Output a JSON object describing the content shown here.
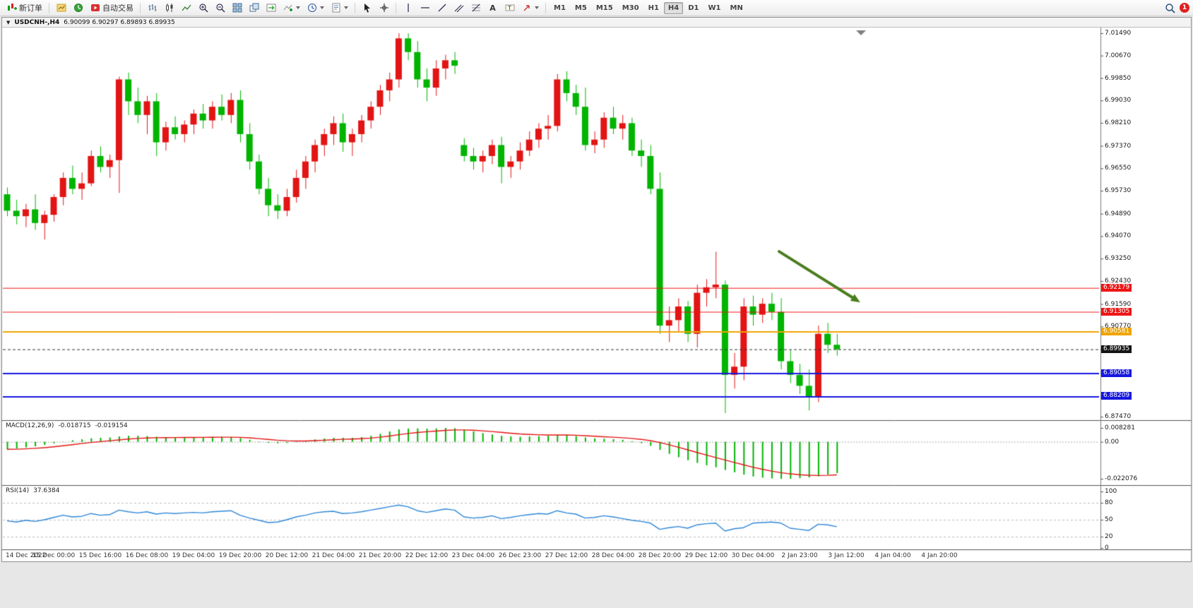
{
  "toolbar": {
    "new_order": "新订单",
    "autotrading": "自动交易",
    "timeframes": [
      "M1",
      "M5",
      "M15",
      "M30",
      "H1",
      "H4",
      "D1",
      "W1",
      "MN"
    ],
    "active_timeframe": "H4",
    "notification_count": "1"
  },
  "chart_window": {
    "symbol_period": "USDCNH-,H4",
    "quotes": "6.90099 6.90297 6.89893 6.89935"
  },
  "indicators": {
    "macd": {
      "label": "MACD(12,26,9)",
      "value_main": "-0.018715",
      "value_signal": "-0.019154",
      "scale": [
        "0.008281",
        "0.00",
        "-0.022076"
      ]
    },
    "rsi": {
      "label": "RSI(14)",
      "value": "37.6384",
      "scale": [
        "100",
        "80",
        "50",
        "20",
        "0"
      ]
    }
  },
  "price_axis": {
    "labels": [
      "7.01490",
      "7.00670",
      "6.99850",
      "6.99030",
      "6.98210",
      "6.97370",
      "6.96550",
      "6.95730",
      "6.94890",
      "6.94070",
      "6.93250",
      "6.92430",
      "6.91590",
      "6.90770",
      "6.87470"
    ],
    "markers": [
      {
        "text": "6.92179",
        "color": "#ee1515"
      },
      {
        "text": "6.91305",
        "color": "#ee1515"
      },
      {
        "text": "6.90581",
        "color": "#f0a400"
      },
      {
        "text": "6.89935",
        "color": "#151515"
      },
      {
        "text": "6.89058",
        "color": "#1717e0"
      },
      {
        "text": "6.88209",
        "color": "#1717e0"
      }
    ]
  },
  "time_axis": {
    "label_every_bars": 5,
    "labels": [
      "14 Dec 2022",
      "15 Dec 00:00",
      "15 Dec 16:00",
      "16 Dec 08:00",
      "19 Dec 04:00",
      "19 Dec 20:00",
      "20 Dec 12:00",
      "21 Dec 04:00",
      "21 Dec 20:00",
      "22 Dec 12:00",
      "23 Dec 04:00",
      "26 Dec 23:00",
      "27 Dec 12:00",
      "28 Dec 04:00",
      "28 Dec 20:00",
      "29 Dec 12:00",
      "30 Dec 04:00",
      "2 Jan 23:00",
      "3 Jan 12:00",
      "4 Jan 04:00",
      "4 Jan 20:00"
    ]
  },
  "chart_data": [
    {
      "type": "candlestick",
      "symbol": "USDCNH-",
      "timeframe": "H4",
      "title": "USDCNH-,H4 6.90099 6.90297 6.89893 6.89935",
      "up_color": "#e21414",
      "down_color": "#00b400",
      "price_range": {
        "top": 7.0167,
        "bottom": 6.8737
      },
      "candles": [
        [
          6.956,
          6.9585,
          6.948,
          6.95
        ],
        [
          6.95,
          6.954,
          6.945,
          6.948
        ],
        [
          6.948,
          6.9525,
          6.944,
          6.9505
        ],
        [
          6.9505,
          6.956,
          6.943,
          6.9455
        ],
        [
          6.9455,
          6.95,
          6.9395,
          6.9485
        ],
        [
          6.9485,
          6.956,
          6.946,
          6.955
        ],
        [
          6.955,
          6.964,
          6.952,
          6.962
        ],
        [
          6.962,
          6.9665,
          6.956,
          6.958
        ],
        [
          6.958,
          6.964,
          6.954,
          6.96
        ],
        [
          6.96,
          6.972,
          6.959,
          6.97
        ],
        [
          6.97,
          6.9735,
          6.964,
          6.966
        ],
        [
          6.966,
          6.9705,
          6.962,
          6.9685
        ],
        [
          6.9685,
          6.999,
          6.9565,
          6.998
        ],
        [
          6.998,
          7.0005,
          6.985,
          6.99
        ],
        [
          6.99,
          6.995,
          6.982,
          6.985
        ],
        [
          6.985,
          6.992,
          6.978,
          6.99
        ],
        [
          6.99,
          6.993,
          6.97,
          6.975
        ],
        [
          6.975,
          6.9825,
          6.972,
          6.9805
        ],
        [
          6.9805,
          6.9845,
          6.976,
          6.978
        ],
        [
          6.978,
          6.983,
          6.975,
          6.9815
        ],
        [
          6.9815,
          6.987,
          6.978,
          6.9855
        ],
        [
          6.9855,
          6.989,
          6.98,
          6.983
        ],
        [
          6.983,
          6.99,
          6.98,
          6.988
        ],
        [
          6.988,
          6.9925,
          6.983,
          6.985
        ],
        [
          6.985,
          6.993,
          6.982,
          6.9905
        ],
        [
          6.9905,
          6.994,
          6.975,
          6.978
        ],
        [
          6.978,
          6.982,
          6.965,
          6.968
        ],
        [
          6.968,
          6.9705,
          6.956,
          6.958
        ],
        [
          6.958,
          6.962,
          6.948,
          6.952
        ],
        [
          6.952,
          6.956,
          6.947,
          6.95
        ],
        [
          6.95,
          6.958,
          6.948,
          6.955
        ],
        [
          6.955,
          6.965,
          6.953,
          6.962
        ],
        [
          6.962,
          6.97,
          6.958,
          6.968
        ],
        [
          6.968,
          6.976,
          6.964,
          6.974
        ],
        [
          6.974,
          6.98,
          6.97,
          6.978
        ],
        [
          6.978,
          6.9845,
          6.974,
          6.982
        ],
        [
          6.982,
          6.9855,
          6.9715,
          6.975
        ],
        [
          6.975,
          6.98,
          6.97,
          6.978
        ],
        [
          6.978,
          6.985,
          6.975,
          6.983
        ],
        [
          6.983,
          6.99,
          6.98,
          6.988
        ],
        [
          6.988,
          6.996,
          6.985,
          6.994
        ],
        [
          6.994,
          7.0005,
          6.99,
          6.998
        ],
        [
          6.998,
          7.0149,
          6.995,
          7.013
        ],
        [
          7.013,
          7.0149,
          7.005,
          7.008
        ],
        [
          7.008,
          7.012,
          6.995,
          6.998
        ],
        [
          6.998,
          7.002,
          6.99,
          6.995
        ],
        [
          6.995,
          7.005,
          6.992,
          7.002
        ],
        [
          7.002,
          7.007,
          6.998,
          7.005
        ],
        [
          7.005,
          7.008,
          7.0,
          7.003
        ],
        [
          6.974,
          6.9765,
          6.968,
          6.97
        ],
        [
          6.97,
          6.973,
          6.965,
          6.968
        ],
        [
          6.968,
          6.972,
          6.964,
          6.97
        ],
        [
          6.97,
          6.976,
          6.967,
          6.974
        ],
        [
          6.974,
          6.977,
          6.96,
          6.966
        ],
        [
          6.966,
          6.97,
          6.962,
          6.968
        ],
        [
          6.968,
          6.975,
          6.965,
          6.972
        ],
        [
          6.972,
          6.979,
          6.97,
          6.976
        ],
        [
          6.976,
          6.982,
          6.973,
          6.98
        ],
        [
          6.98,
          6.985,
          6.976,
          6.981
        ],
        [
          6.981,
          7.0,
          6.979,
          6.998
        ],
        [
          6.998,
          7.001,
          6.99,
          6.993
        ],
        [
          6.993,
          6.996,
          6.985,
          6.988
        ],
        [
          6.988,
          6.995,
          6.972,
          6.974
        ],
        [
          6.974,
          6.979,
          6.971,
          6.976
        ],
        [
          6.976,
          6.986,
          6.973,
          6.984
        ],
        [
          6.984,
          6.988,
          6.978,
          6.98
        ],
        [
          6.98,
          6.985,
          6.976,
          6.982
        ],
        [
          6.982,
          6.984,
          6.97,
          6.972
        ],
        [
          6.972,
          6.976,
          6.966,
          6.97
        ],
        [
          6.97,
          6.974,
          6.956,
          6.958
        ],
        [
          6.958,
          6.964,
          6.905,
          6.908
        ],
        [
          6.908,
          6.915,
          6.902,
          6.91
        ],
        [
          6.91,
          6.918,
          6.906,
          6.915
        ],
        [
          6.915,
          6.917,
          6.902,
          6.905
        ],
        [
          6.905,
          6.923,
          6.9,
          6.92
        ],
        [
          6.92,
          6.925,
          6.915,
          6.922
        ],
        [
          6.922,
          6.935,
          6.918,
          6.923
        ],
        [
          6.923,
          6.9245,
          6.876,
          6.89
        ],
        [
          6.89,
          6.898,
          6.885,
          6.893
        ],
        [
          6.893,
          6.918,
          6.888,
          6.915
        ],
        [
          6.915,
          6.919,
          6.908,
          6.912
        ],
        [
          6.912,
          6.918,
          6.909,
          6.916
        ],
        [
          6.916,
          6.92,
          6.91,
          6.913
        ],
        [
          6.913,
          6.918,
          6.892,
          6.895
        ],
        [
          6.895,
          6.899,
          6.887,
          6.89
        ],
        [
          6.89,
          6.894,
          6.883,
          6.886
        ],
        [
          6.886,
          6.892,
          6.877,
          6.882
        ],
        [
          6.882,
          6.908,
          6.88,
          6.905
        ],
        [
          6.905,
          6.909,
          6.898,
          6.901
        ],
        [
          6.901,
          6.905,
          6.897,
          6.89935
        ]
      ],
      "levels": [
        {
          "price": 6.92179,
          "color": "#ee1515",
          "width": 1
        },
        {
          "price": 6.91305,
          "color": "#ee1515",
          "width": 1
        },
        {
          "price": 6.90581,
          "color": "#f0a400",
          "width": 2
        },
        {
          "price": 6.89058,
          "color": "#1717e0",
          "width": 2
        },
        {
          "price": 6.88209,
          "color": "#1717e0",
          "width": 2
        }
      ],
      "current_price": {
        "price": 6.89935,
        "color": "#333333"
      },
      "arrow": {
        "from_bar": 82.8,
        "from_price": 6.9351,
        "to_bar": 91.5,
        "to_price": 6.9165,
        "color": "#4a7d1e"
      }
    },
    {
      "type": "bar",
      "name": "MACD(12,26,9)",
      "histogram_color": "#00b400",
      "signal_color": "#e21414",
      "max": 0.008281,
      "min": -0.022076,
      "values": [
        -0.0045,
        -0.004,
        -0.0034,
        -0.0027,
        -0.0019,
        -0.0009,
        0.0001,
        0.0009,
        0.0015,
        0.0021,
        0.0024,
        0.0026,
        0.0032,
        0.0036,
        0.0036,
        0.0034,
        0.003,
        0.0028,
        0.0027,
        0.0026,
        0.0027,
        0.0028,
        0.0029,
        0.003,
        0.0028,
        0.0022,
        0.0012,
        0.0002,
        -0.0006,
        -0.0009,
        -0.0007,
        -0.0002,
        0.0006,
        0.0014,
        0.002,
        0.0024,
        0.0024,
        0.0024,
        0.0028,
        0.0036,
        0.0048,
        0.0062,
        0.0074,
        0.0079,
        0.008,
        0.0078,
        0.008,
        0.00828,
        0.0081,
        0.0072,
        0.0062,
        0.0052,
        0.0044,
        0.0036,
        0.0032,
        0.003,
        0.0032,
        0.0034,
        0.0036,
        0.004,
        0.004,
        0.0034,
        0.0026,
        0.002,
        0.0018,
        0.0016,
        0.0012,
        0.0004,
        -0.0008,
        -0.0024,
        -0.0048,
        -0.0072,
        -0.0092,
        -0.011,
        -0.0126,
        -0.014,
        -0.0152,
        -0.0168,
        -0.0182,
        -0.0196,
        -0.0207,
        -0.0214,
        -0.0219,
        -0.0221,
        -0.022076,
        -0.0217,
        -0.0213,
        -0.0206,
        -0.0196,
        -0.018715
      ]
    },
    {
      "type": "line",
      "name": "RSI(14)",
      "color": "#2e86d7",
      "range": [
        0,
        100
      ],
      "levels": [
        80,
        50,
        20
      ],
      "values": [
        48,
        46,
        49,
        47,
        50,
        54,
        58,
        55,
        56,
        61,
        58,
        59,
        67,
        64,
        62,
        64,
        60,
        62,
        61,
        62,
        63,
        62,
        64,
        65,
        66,
        58,
        53,
        49,
        45,
        46,
        50,
        55,
        58,
        62,
        64,
        65,
        61,
        62,
        64,
        67,
        70,
        73,
        76,
        73,
        66,
        63,
        66,
        69,
        67,
        55,
        53,
        54,
        57,
        52,
        54,
        57,
        59,
        61,
        60,
        66,
        62,
        60,
        53,
        54,
        57,
        55,
        52,
        49,
        47,
        44,
        33,
        36,
        38,
        35,
        41,
        43,
        44,
        30,
        34,
        36,
        44,
        45,
        46,
        44,
        35,
        33,
        31,
        42,
        41,
        37.6384
      ]
    }
  ]
}
